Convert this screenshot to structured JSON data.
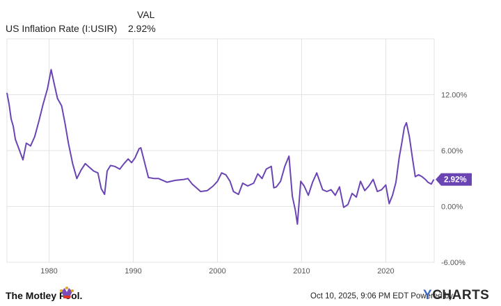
{
  "legend": {
    "header": "VAL",
    "series_name": "US Inflation Rate (I:USIR)",
    "series_value": "2.92%"
  },
  "footer": {
    "brand": "The Motley Fool.",
    "timestamp": "Oct 10, 2025, 9:06 PM EDT Powered by",
    "ycharts_y": "Y",
    "ycharts_rest": "CHARTS"
  },
  "colors": {
    "line": "#6b44b4",
    "grid": "#e3e3e3",
    "badge": "#6b44b4",
    "axis_text": "#555555"
  },
  "chart_data": {
    "type": "line",
    "title": "",
    "xlabel": "",
    "ylabel": "",
    "xlim": [
      1975.0,
      2025.75
    ],
    "ylim": [
      -6,
      18
    ],
    "x_ticks": [
      1980,
      1990,
      2000,
      2010,
      2020
    ],
    "x_tick_labels": [
      "1980",
      "1990",
      "2000",
      "2010",
      "2020"
    ],
    "y_ticks": [
      -6,
      0,
      6,
      12
    ],
    "y_tick_labels": [
      "-6.00%",
      "0.00%",
      "6.00%",
      "12.00%"
    ],
    "grid": true,
    "last_value_label": "2.92%",
    "series": [
      {
        "name": "US Inflation Rate (I:USIR)",
        "x": [
          1975.0,
          1975.25,
          1975.5,
          1975.75,
          1976.0,
          1976.5,
          1976.9,
          1977.3,
          1977.8,
          1978.3,
          1978.8,
          1979.3,
          1979.8,
          1980.25,
          1980.6,
          1981.0,
          1981.5,
          1981.9,
          1982.3,
          1982.8,
          1983.3,
          1983.8,
          1984.3,
          1984.8,
          1985.3,
          1985.8,
          1986.2,
          1986.6,
          1986.9,
          1987.3,
          1987.8,
          1988.4,
          1988.9,
          1989.4,
          1989.8,
          1990.2,
          1990.7,
          1990.9,
          1991.3,
          1991.8,
          1992.5,
          1993.0,
          1994.0,
          1995.0,
          1996.0,
          1996.5,
          1997.0,
          1998.0,
          1998.8,
          1999.5,
          2000.0,
          2000.5,
          2001.0,
          2001.5,
          2001.9,
          2002.5,
          2003.0,
          2003.6,
          2004.3,
          2004.8,
          2005.3,
          2005.8,
          2006.4,
          2006.7,
          2007.0,
          2007.5,
          2008.0,
          2008.5,
          2008.9,
          2009.25,
          2009.5,
          2009.9,
          2010.3,
          2010.8,
          2011.3,
          2011.8,
          2012.5,
          2013.0,
          2013.5,
          2014.0,
          2014.5,
          2015.0,
          2015.5,
          2016.0,
          2016.5,
          2017.0,
          2017.5,
          2018.0,
          2018.5,
          2019.0,
          2019.5,
          2020.0,
          2020.4,
          2020.8,
          2021.2,
          2021.6,
          2021.9,
          2022.2,
          2022.45,
          2022.8,
          2023.2,
          2023.5,
          2023.9,
          2024.3,
          2024.7,
          2025.0,
          2025.4,
          2025.7
        ],
        "values": [
          12.2,
          11.0,
          9.4,
          8.6,
          7.2,
          6.0,
          5.0,
          6.8,
          6.5,
          7.5,
          9.2,
          11.0,
          12.6,
          14.7,
          13.2,
          11.6,
          10.8,
          8.9,
          6.8,
          4.6,
          3.0,
          3.9,
          4.6,
          4.2,
          3.8,
          3.6,
          1.9,
          1.3,
          3.8,
          4.4,
          4.3,
          4.0,
          4.6,
          5.1,
          4.7,
          5.2,
          6.2,
          6.3,
          4.9,
          3.1,
          3.0,
          3.0,
          2.6,
          2.8,
          2.9,
          3.0,
          2.4,
          1.6,
          1.7,
          2.2,
          2.7,
          3.6,
          3.4,
          2.7,
          1.6,
          1.3,
          2.5,
          2.2,
          2.5,
          3.5,
          3.0,
          4.0,
          4.3,
          2.0,
          2.1,
          2.7,
          4.3,
          5.4,
          1.1,
          -0.4,
          -1.9,
          2.7,
          2.2,
          1.2,
          2.6,
          3.6,
          1.8,
          1.6,
          1.8,
          1.2,
          2.1,
          -0.1,
          0.2,
          1.4,
          1.0,
          2.7,
          1.7,
          2.2,
          2.9,
          1.6,
          1.8,
          2.3,
          0.3,
          1.2,
          2.6,
          5.3,
          6.8,
          8.5,
          9.0,
          7.5,
          5.0,
          3.2,
          3.4,
          3.2,
          2.9,
          2.6,
          2.4,
          2.9
        ]
      }
    ]
  }
}
